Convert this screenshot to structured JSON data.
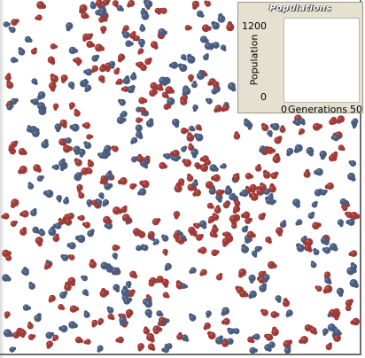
{
  "plot": {
    "title": "Populations",
    "y_axis_label": "Population",
    "y_max": "1200",
    "y_min": "0",
    "x_axis_label": "Generations",
    "x_min": "0",
    "x_max": "50"
  },
  "chart_data": {
    "type": "line",
    "title": "Populations",
    "xlabel": "Generations",
    "ylabel": "Population",
    "xlim": [
      0,
      50
    ],
    "ylim": [
      0,
      1200
    ],
    "series": []
  },
  "colors": {
    "red_agent": "#a03a36",
    "blue_agent": "#4a5d80",
    "panel_bg": "#e4e1d0"
  }
}
